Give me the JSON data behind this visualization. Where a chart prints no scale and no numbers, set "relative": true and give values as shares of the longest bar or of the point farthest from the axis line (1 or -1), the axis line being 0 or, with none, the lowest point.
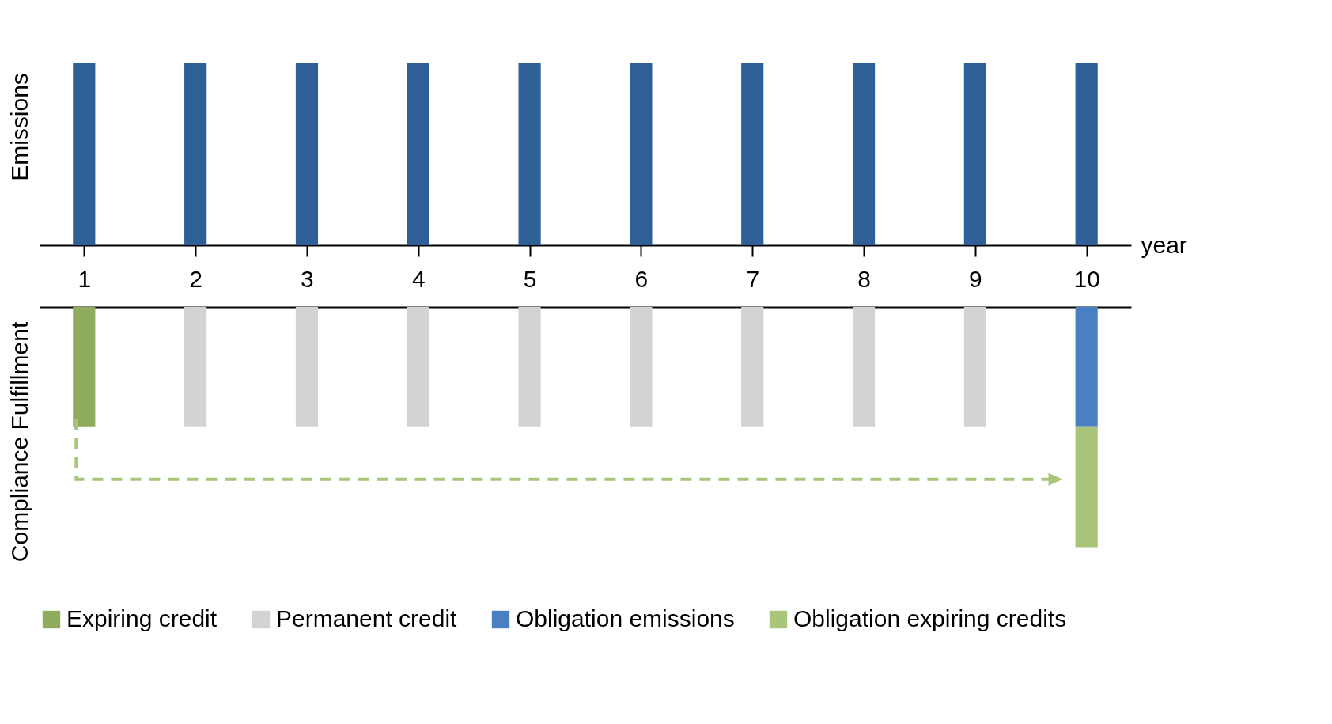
{
  "chart_data": [
    {
      "type": "bar",
      "relative": true,
      "ylabel": "Emissions",
      "xlabel": "year",
      "categories": [
        "1",
        "2",
        "3",
        "4",
        "5",
        "6",
        "7",
        "8",
        "9",
        "10"
      ],
      "values": [
        1,
        1,
        1,
        1,
        1,
        1,
        1,
        1,
        1,
        1
      ],
      "color": "#2f5f97"
    },
    {
      "type": "bar",
      "relative": true,
      "stacked": true,
      "ylabel": "Compliance Fulfillment",
      "tick_labels": false,
      "legend": "bottom",
      "categories": [
        "1",
        "2",
        "3",
        "4",
        "5",
        "6",
        "7",
        "8",
        "9",
        "10"
      ],
      "series": [
        {
          "name": "Expiring credit",
          "color": "#8fab5e",
          "values": [
            -0.5,
            null,
            null,
            null,
            null,
            null,
            null,
            null,
            null,
            null
          ]
        },
        {
          "name": "Permanent credit",
          "color": "#d3d3d3",
          "values": [
            null,
            -0.5,
            -0.5,
            -0.5,
            -0.5,
            -0.5,
            -0.5,
            -0.5,
            -0.5,
            null
          ]
        },
        {
          "name": "Obligation emissions",
          "color": "#4a7fc1",
          "values": [
            null,
            null,
            null,
            null,
            null,
            null,
            null,
            null,
            null,
            -0.5
          ]
        },
        {
          "name": "Obligation expiring credits",
          "color": "#a8c57a",
          "values": [
            null,
            null,
            null,
            null,
            null,
            null,
            null,
            null,
            null,
            -0.5
          ]
        }
      ]
    }
  ]
}
